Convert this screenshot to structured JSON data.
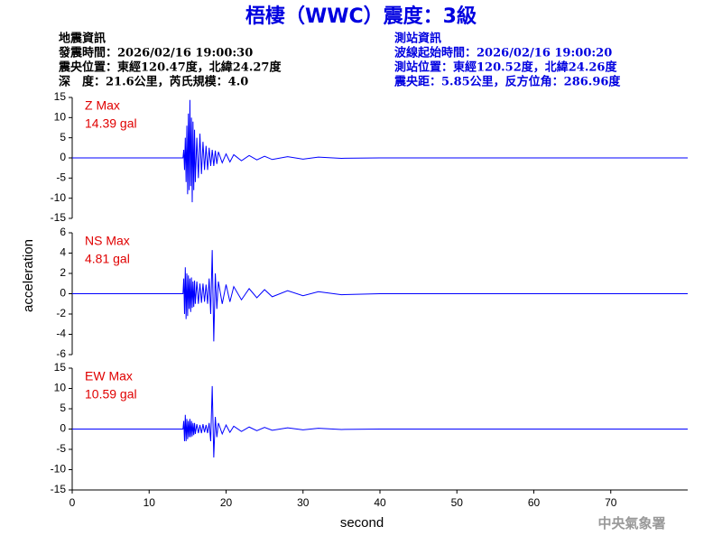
{
  "header": {
    "title": "梧棲（WWC）震度：3級",
    "left": [
      "地震資訊",
      "發震時間：2026/02/16 19:00:30",
      "震央位置：東經120.47度，北緯24.27度",
      "深　度：21.6公里，芮氏規模：4.0"
    ],
    "right": [
      "測站資訊",
      "波線起始時間：2026/02/16 19:00:20",
      "測站位置：東經120.52度，北緯24.26度",
      "震央距：5.85公里，反方位角：286.96度"
    ]
  },
  "footer": "中央氣象署",
  "chart_data": [
    {
      "type": "line",
      "label": "Z Max",
      "max_label": "14.39 gal",
      "xlim": [
        0,
        80
      ],
      "ylim": [
        -15,
        15
      ],
      "yticks": [
        15,
        10,
        5,
        0,
        -5,
        -10,
        -15
      ],
      "x": [
        0,
        14.4,
        14.5,
        14.6,
        14.7,
        14.8,
        14.9,
        15.0,
        15.1,
        15.2,
        15.3,
        15.4,
        15.5,
        15.6,
        15.7,
        15.8,
        15.9,
        16.0,
        16.2,
        16.4,
        16.6,
        16.8,
        17.0,
        17.2,
        17.4,
        17.6,
        17.8,
        18.0,
        18.2,
        18.4,
        18.6,
        18.8,
        19.0,
        19.5,
        20,
        20.5,
        21,
        22,
        23,
        24,
        25,
        26,
        28,
        30,
        32,
        35,
        40,
        80
      ],
      "series": [
        {
          "color": "#0000ff",
          "values": [
            0,
            0,
            2,
            -3,
            5,
            -6,
            8,
            -9,
            11,
            -8,
            14.39,
            -7,
            10,
            -11,
            9,
            -8,
            7,
            -6,
            5,
            -5,
            6,
            -4,
            4,
            -3,
            3,
            -3,
            2.5,
            -2,
            2,
            -2,
            1.8,
            -1.5,
            1.5,
            -1.2,
            1,
            -1,
            0.8,
            -0.7,
            0.6,
            -0.5,
            0.4,
            -0.4,
            0.3,
            -0.3,
            0.2,
            -0.1,
            0,
            0
          ]
        }
      ]
    },
    {
      "type": "line",
      "label": "NS Max",
      "max_label": "4.81 gal",
      "ylabel": "acceleration",
      "xlim": [
        0,
        80
      ],
      "ylim": [
        -6,
        6
      ],
      "yticks": [
        6,
        4,
        2,
        0,
        -2,
        -4,
        -6
      ],
      "x": [
        0,
        14.4,
        14.5,
        14.6,
        14.7,
        14.8,
        14.9,
        15.0,
        15.1,
        15.2,
        15.3,
        15.4,
        15.5,
        15.6,
        15.7,
        15.8,
        15.9,
        16.0,
        16.2,
        16.4,
        16.6,
        16.8,
        17.0,
        17.2,
        17.4,
        17.6,
        17.8,
        18.0,
        18.2,
        18.4,
        18.6,
        18.8,
        19.0,
        19.5,
        20,
        20.5,
        21,
        22,
        23,
        24,
        25,
        26,
        28,
        30,
        32,
        35,
        40,
        80
      ],
      "series": [
        {
          "color": "#0000ff",
          "values": [
            0,
            0,
            1.5,
            -2,
            2.6,
            -2.5,
            2,
            -2.2,
            1.8,
            -1.5,
            1.5,
            -1.8,
            1.6,
            -1.4,
            1.2,
            -1.3,
            1.3,
            -1,
            1.2,
            -1,
            1,
            -0.9,
            1,
            -0.8,
            0.9,
            -1,
            1.5,
            -2,
            4.3,
            -4.7,
            2,
            -1.5,
            1.2,
            -1,
            0.9,
            -0.8,
            0.7,
            -0.6,
            0.5,
            -0.4,
            0.4,
            -0.3,
            0.3,
            -0.2,
            0.2,
            -0.1,
            0,
            0
          ]
        }
      ]
    },
    {
      "type": "line",
      "label": "EW Max",
      "max_label": "10.59 gal",
      "xlabel": "second",
      "xlim": [
        0,
        80
      ],
      "ylim": [
        -15,
        15
      ],
      "yticks": [
        15,
        10,
        5,
        0,
        -5,
        -10,
        -15
      ],
      "xticks": [
        0,
        10,
        20,
        30,
        40,
        50,
        60,
        70
      ],
      "x": [
        0,
        14.4,
        14.5,
        14.6,
        14.7,
        14.8,
        14.9,
        15.0,
        15.1,
        15.2,
        15.3,
        15.4,
        15.5,
        15.6,
        15.7,
        15.8,
        15.9,
        16.0,
        16.2,
        16.4,
        16.6,
        16.8,
        17.0,
        17.2,
        17.4,
        17.6,
        17.8,
        18.0,
        18.2,
        18.4,
        18.6,
        18.8,
        19.0,
        19.5,
        20,
        20.5,
        21,
        22,
        23,
        24,
        25,
        26,
        28,
        30,
        32,
        35,
        40,
        80
      ],
      "series": [
        {
          "color": "#0000ff",
          "values": [
            0,
            0,
            2,
            -3,
            3.5,
            -3,
            2.5,
            -2.5,
            2,
            -2,
            2.5,
            -2,
            2,
            -1.8,
            1.5,
            -1.5,
            1.5,
            -1.2,
            1.2,
            -1,
            1,
            -1,
            1.2,
            -0.8,
            1,
            -1,
            1.5,
            -3,
            10.59,
            -7,
            3,
            -2,
            1.5,
            -1.2,
            1,
            -0.8,
            0.7,
            -0.6,
            0.5,
            -0.4,
            0.4,
            -0.3,
            0.3,
            -0.2,
            0.2,
            -0.1,
            0,
            0
          ]
        }
      ]
    }
  ]
}
